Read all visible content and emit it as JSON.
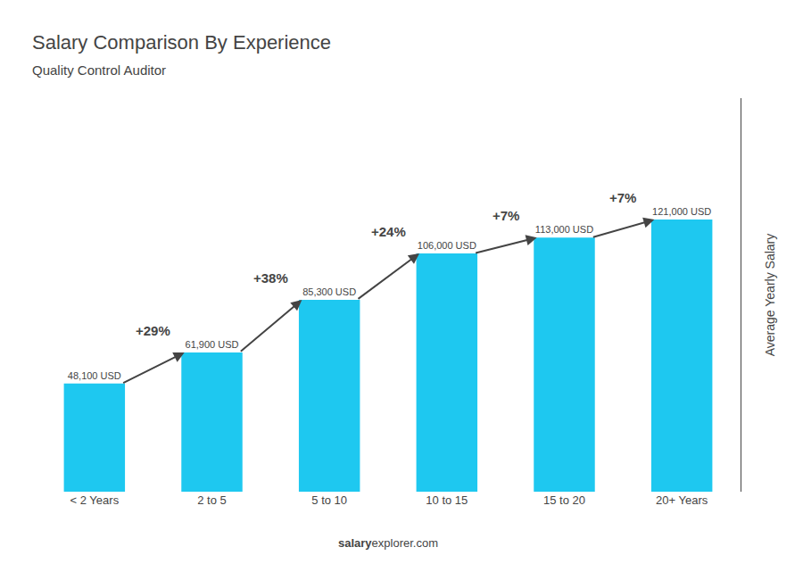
{
  "chart_data": {
    "type": "bar",
    "title": "Salary Comparison By Experience",
    "subtitle": "Quality Control Auditor",
    "categories": [
      "< 2 Years",
      "2 to 5",
      "5 to 10",
      "10 to 15",
      "15 to 20",
      "20+ Years"
    ],
    "values": [
      48100,
      61900,
      85300,
      106000,
      113000,
      121000
    ],
    "value_labels": [
      "48,100 USD",
      "61,900 USD",
      "85,300 USD",
      "106,000 USD",
      "113,000 USD",
      "121,000 USD"
    ],
    "data_labels": true,
    "color": "#1ec8f0",
    "ylabel": "Average Yearly Salary",
    "ylim": [
      0,
      175000
    ],
    "yticks": [],
    "tick_labels": "x",
    "grid": false,
    "annotations": [
      "+29%",
      "+38%",
      "+24%",
      "+7%",
      "+7%"
    ],
    "footer": [
      "salary",
      "explorer.com"
    ]
  }
}
